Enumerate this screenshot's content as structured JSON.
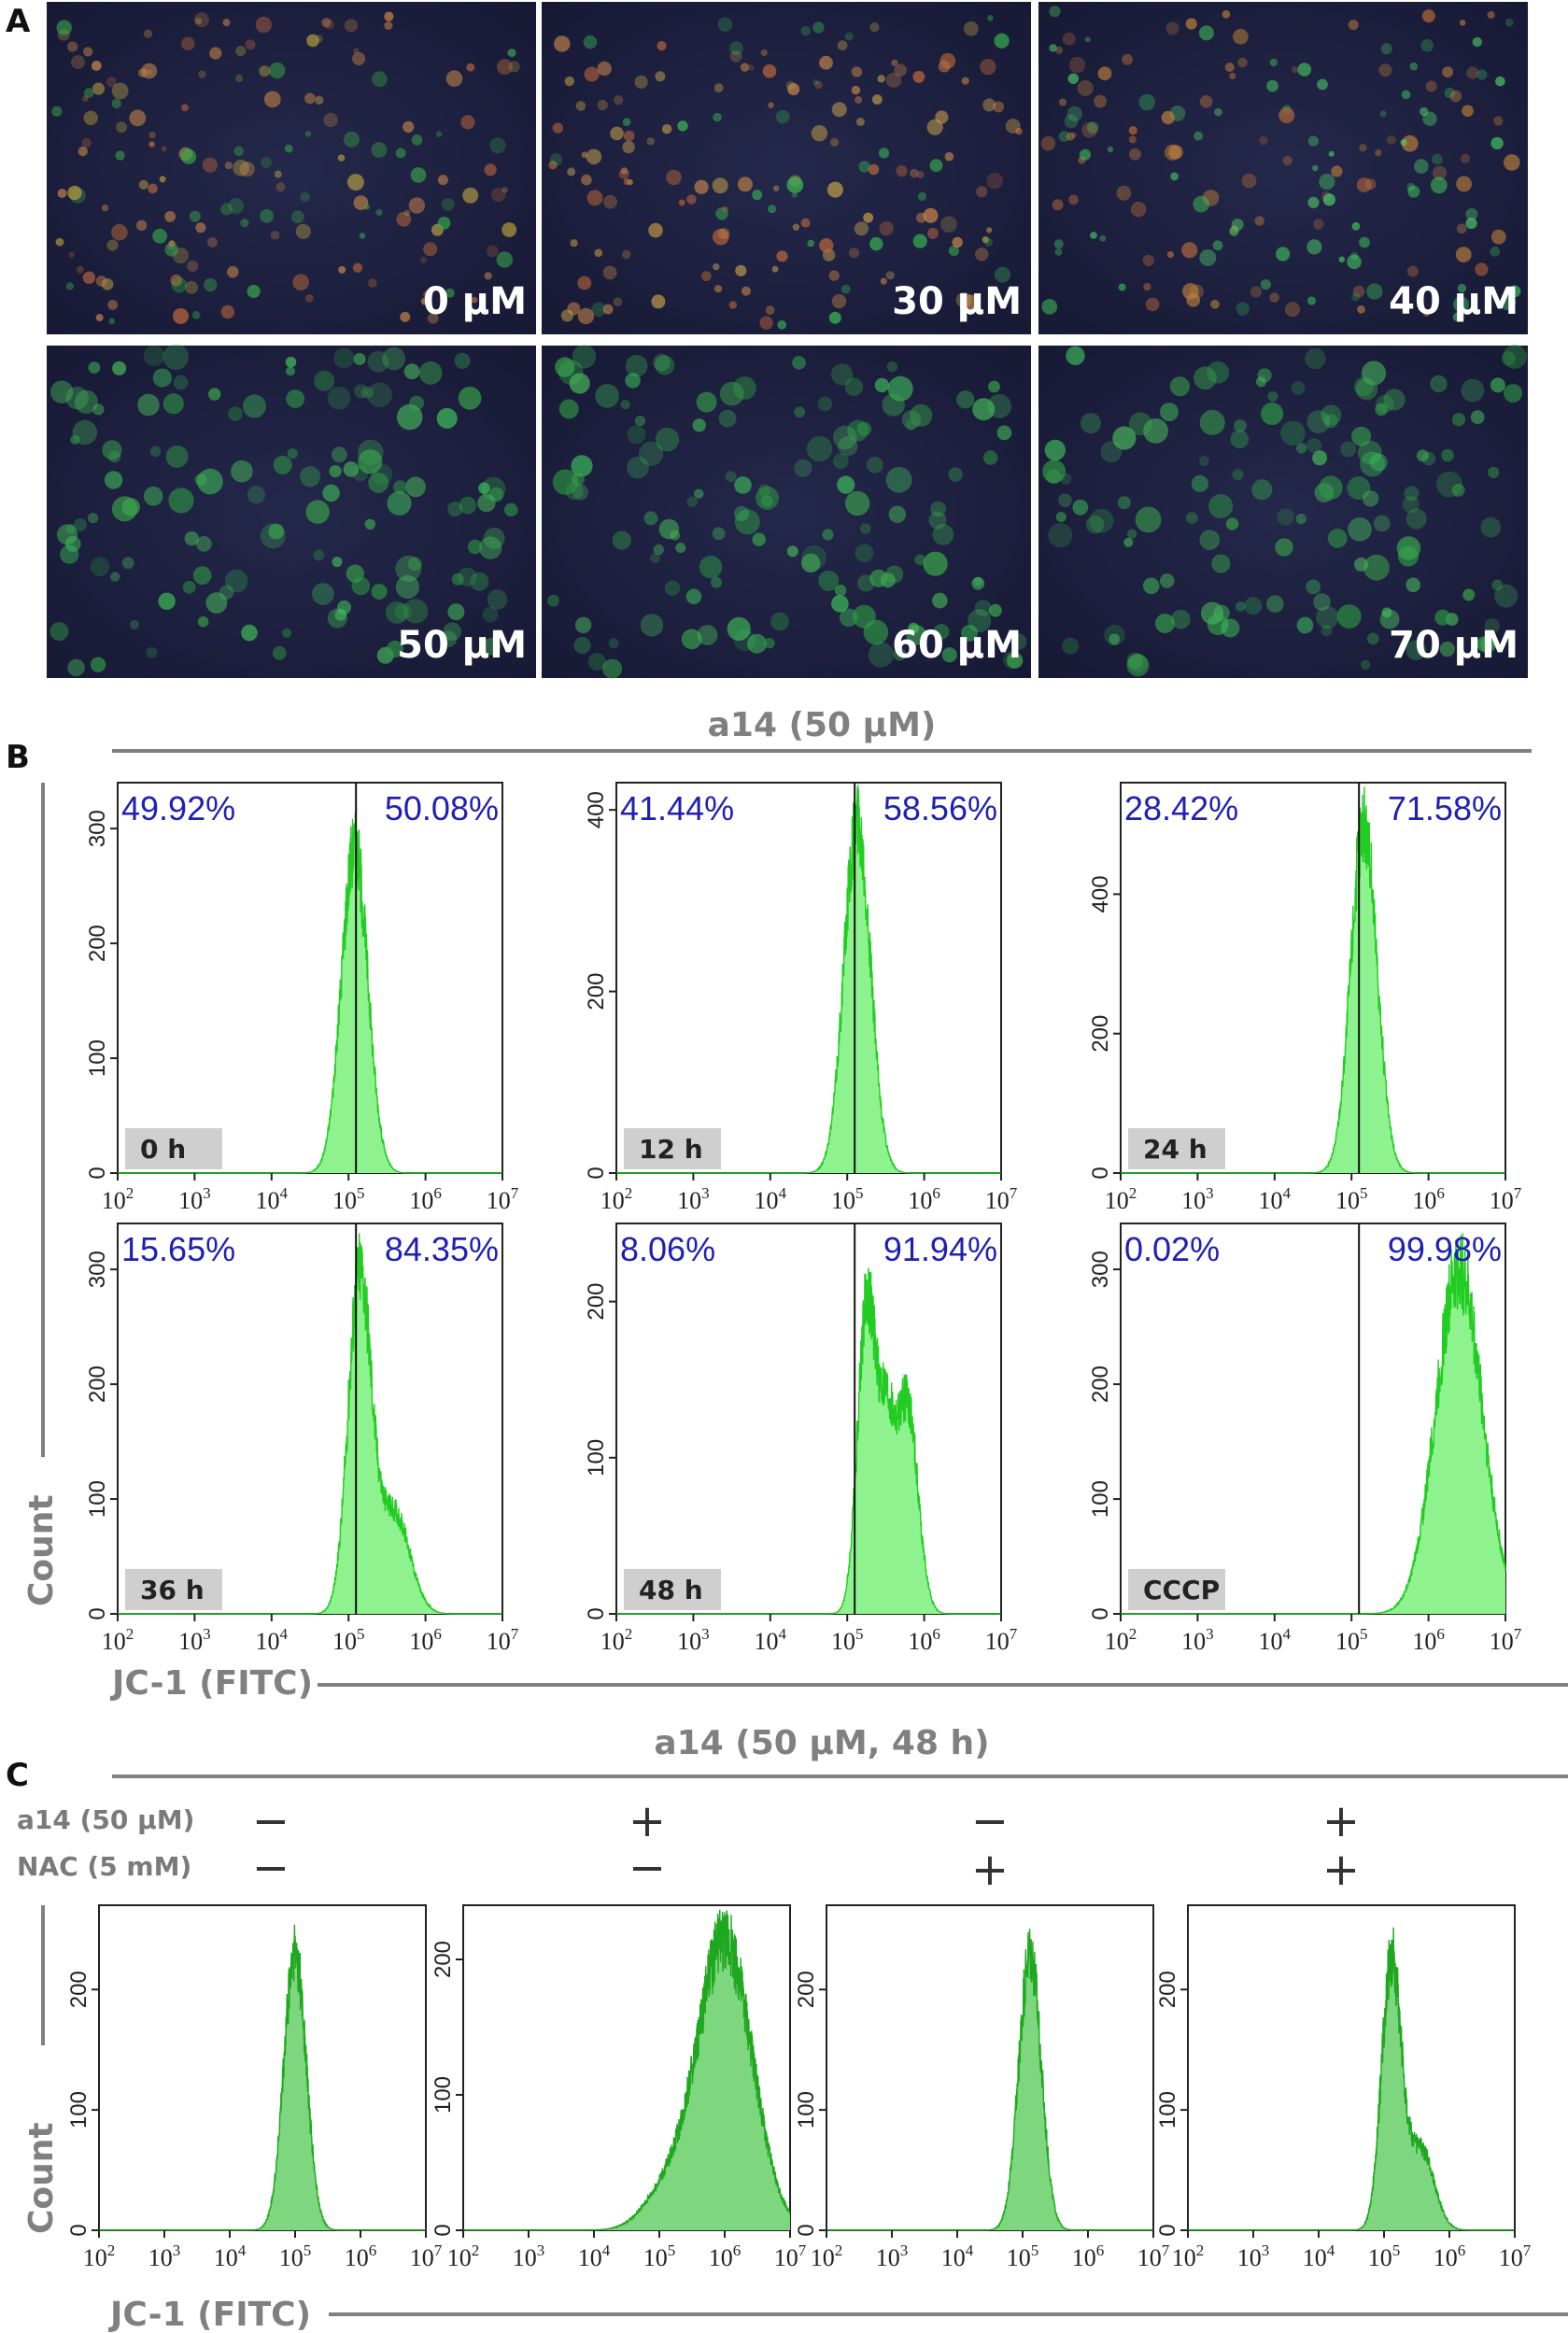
{
  "panel_a": {
    "letter": "A",
    "images": [
      {
        "label": "0 µM"
      },
      {
        "label": "30 µM"
      },
      {
        "label": "40 µM"
      },
      {
        "label": "50 µM"
      },
      {
        "label": "60 µM"
      },
      {
        "label": "70 µM"
      }
    ]
  },
  "panel_b": {
    "letter": "B",
    "title": "a14 (50 µM)",
    "ylabel": "Count",
    "xlabel": "JC-1  (FITC)"
  },
  "panel_c": {
    "letter": "C",
    "title": "a14 (50 µM, 48 h)",
    "ylabel": "Count",
    "xlabel": "JC-1  (FITC)",
    "row1_label": "a14 (50 µM)",
    "row2_label": "NAC (5 mM)",
    "a14_signs": [
      "−",
      "+",
      "−",
      "+"
    ],
    "nac_signs": [
      "−",
      "−",
      "+",
      "+"
    ]
  },
  "chart_data": [
    {
      "type": "area",
      "panel": "B",
      "title": "0 h",
      "x_scale": "log",
      "xlim": [
        100,
        10000000
      ],
      "yticks": [
        0,
        100,
        200,
        300
      ],
      "ylim": [
        0,
        340
      ],
      "gate": 125000,
      "left_pct": "49.92%",
      "right_pct": "50.08%",
      "peak_x": 120000,
      "peak_count": 285,
      "shape": "single"
    },
    {
      "type": "area",
      "panel": "B",
      "title": "12 h",
      "x_scale": "log",
      "xlim": [
        100,
        10000000
      ],
      "yticks": [
        0,
        200,
        400
      ],
      "ylim": [
        0,
        430
      ],
      "gate": 125000,
      "left_pct": "41.44%",
      "right_pct": "58.56%",
      "peak_x": 135000,
      "peak_count": 390,
      "shape": "single"
    },
    {
      "type": "area",
      "panel": "B",
      "title": "24 h",
      "x_scale": "log",
      "xlim": [
        100,
        10000000
      ],
      "yticks": [
        0,
        200,
        400
      ],
      "ylim": [
        0,
        560
      ],
      "gate": 125000,
      "left_pct": "28.42%",
      "right_pct": "71.58%",
      "peak_x": 145000,
      "peak_count": 500,
      "shape": "single"
    },
    {
      "type": "area",
      "panel": "B",
      "title": "36 h",
      "x_scale": "log",
      "xlim": [
        100,
        10000000
      ],
      "yticks": [
        0,
        100,
        200,
        300
      ],
      "ylim": [
        0,
        340
      ],
      "gate": 125000,
      "left_pct": "15.65%",
      "right_pct": "84.35%",
      "peak_x": 140000,
      "peak_count": 300,
      "shape": "shoulder"
    },
    {
      "type": "area",
      "panel": "B",
      "title": "48 h",
      "x_scale": "log",
      "xlim": [
        100,
        10000000
      ],
      "yticks": [
        0,
        100,
        200
      ],
      "ylim": [
        0,
        250
      ],
      "gate": 125000,
      "left_pct": "8.06%",
      "right_pct": "91.94%",
      "peak_x": 180000,
      "peak_count": 205,
      "shape": "double"
    },
    {
      "type": "area",
      "panel": "B",
      "title": "CCCP",
      "x_scale": "log",
      "xlim": [
        100,
        10000000
      ],
      "yticks": [
        0,
        100,
        200,
        300
      ],
      "ylim": [
        0,
        340
      ],
      "gate": 125000,
      "left_pct": "0.02%",
      "right_pct": "99.98%",
      "peak_x": 2500000,
      "peak_count": 300,
      "shape": "broad"
    },
    {
      "type": "area",
      "panel": "C",
      "title": "a14 − / NAC −",
      "x_scale": "log",
      "xlim": [
        100,
        10000000
      ],
      "yticks": [
        0,
        100,
        200
      ],
      "ylim": [
        0,
        270
      ],
      "peak_x": 100000,
      "peak_count": 230,
      "shape": "single"
    },
    {
      "type": "area",
      "panel": "C",
      "title": "a14 + / NAC −",
      "x_scale": "log",
      "xlim": [
        100,
        10000000
      ],
      "yticks": [
        0,
        100,
        200
      ],
      "ylim": [
        0,
        240
      ],
      "peak_x": 1000000,
      "peak_count": 215,
      "shape": "broadRight"
    },
    {
      "type": "area",
      "panel": "C",
      "title": "a14 − / NAC +",
      "x_scale": "log",
      "xlim": [
        100,
        10000000
      ],
      "yticks": [
        0,
        100,
        200
      ],
      "ylim": [
        0,
        270
      ],
      "peak_x": 130000,
      "peak_count": 230,
      "shape": "single"
    },
    {
      "type": "area",
      "panel": "C",
      "title": "a14 + / NAC +",
      "x_scale": "log",
      "xlim": [
        100,
        10000000
      ],
      "yticks": [
        0,
        100,
        200
      ],
      "ylim": [
        0,
        270
      ],
      "peak_x": 130000,
      "peak_count": 230,
      "shape": "shoulder"
    }
  ]
}
